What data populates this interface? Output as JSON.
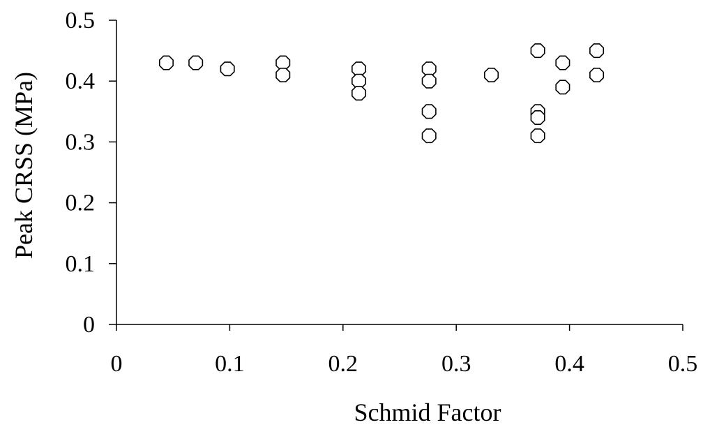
{
  "chart_data": {
    "type": "scatter",
    "title": "",
    "xlabel": "Schmid Factor",
    "ylabel": "Peak CRSS (MPa)",
    "xlim": [
      0,
      0.5
    ],
    "ylim": [
      0,
      0.5
    ],
    "x_ticks": [
      0,
      0.1,
      0.2,
      0.3,
      0.4,
      0.5
    ],
    "x_tick_labels": [
      "0",
      "0.1",
      "0.2",
      "0.3",
      "0.4",
      "0.5"
    ],
    "y_ticks": [
      0,
      0.1,
      0.2,
      0.3,
      0.4,
      0.5
    ],
    "y_tick_labels": [
      "0",
      "0.1",
      "0.2",
      "0.3",
      "0.4",
      "0.5"
    ],
    "grid": false,
    "legend": "none",
    "marker": "open-octagon",
    "series": [
      {
        "x": [
          0.044,
          0.07,
          0.098,
          0.147,
          0.147,
          0.214,
          0.214,
          0.214,
          0.276,
          0.276,
          0.276,
          0.276,
          0.331,
          0.372,
          0.372,
          0.372,
          0.372,
          0.394,
          0.394,
          0.424,
          0.424
        ],
        "y": [
          0.43,
          0.43,
          0.42,
          0.43,
          0.41,
          0.42,
          0.4,
          0.38,
          0.42,
          0.4,
          0.35,
          0.31,
          0.41,
          0.45,
          0.35,
          0.34,
          0.31,
          0.43,
          0.39,
          0.45,
          0.41
        ]
      }
    ]
  }
}
